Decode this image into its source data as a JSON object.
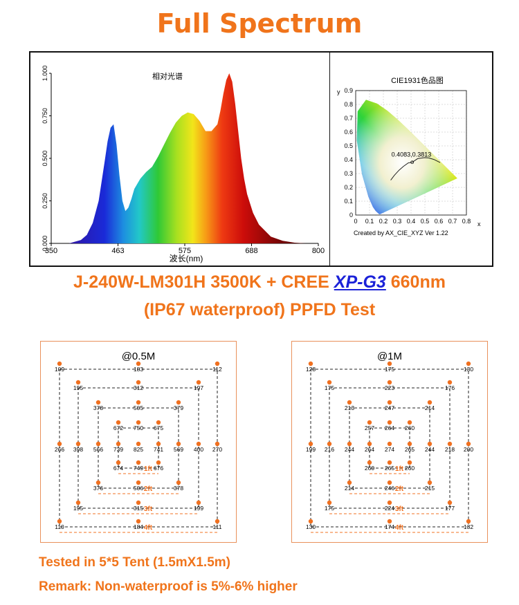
{
  "title": "Full Spectrum",
  "heading": {
    "line1_prefix": "J-240W-LM301H 3500K + CREE ",
    "line1_link": "XP-G3",
    "line1_suffix": " 660nm",
    "line2": "(IP67 waterproof) PPFD Test"
  },
  "colors": {
    "accent": "#f0741b",
    "link": "#1b22d8",
    "dashed_square": "#222222",
    "dot": "#f07020"
  },
  "chart_data": [
    {
      "type": "area",
      "title": "相对光谱",
      "xlabel": "波长(nm)",
      "ylabel": "",
      "xlim": [
        350,
        800
      ],
      "ylim": [
        0,
        1
      ],
      "x_ticks": [
        "350",
        "463",
        "575",
        "688",
        "800"
      ],
      "y_ticks": [
        "0.000",
        "0.250",
        "0.500",
        "0.750",
        "1.000"
      ],
      "x": [
        380,
        400,
        410,
        420,
        430,
        440,
        445,
        450,
        455,
        460,
        465,
        470,
        475,
        480,
        485,
        490,
        500,
        510,
        520,
        530,
        540,
        550,
        560,
        570,
        580,
        590,
        600,
        610,
        620,
        630,
        635,
        640,
        645,
        650,
        655,
        660,
        665,
        670,
        675,
        680,
        690,
        700,
        720,
        740,
        760,
        780
      ],
      "y": [
        0.0,
        0.02,
        0.05,
        0.12,
        0.25,
        0.48,
        0.6,
        0.68,
        0.7,
        0.58,
        0.4,
        0.25,
        0.19,
        0.21,
        0.26,
        0.32,
        0.38,
        0.42,
        0.45,
        0.51,
        0.58,
        0.65,
        0.71,
        0.75,
        0.77,
        0.76,
        0.72,
        0.66,
        0.66,
        0.7,
        0.78,
        0.88,
        0.96,
        1.0,
        0.95,
        0.82,
        0.66,
        0.5,
        0.38,
        0.29,
        0.18,
        0.11,
        0.04,
        0.015,
        0.004,
        0.0
      ]
    },
    {
      "type": "scatter",
      "title": "CIE1931色品图",
      "xlabel": "x",
      "ylabel": "y",
      "xlim": [
        0,
        0.8
      ],
      "ylim": [
        0,
        0.9
      ],
      "x_ticks": [
        "0",
        "0.1",
        "0.2",
        "0.3",
        "0.4",
        "0.5",
        "0.6",
        "0.7",
        "0.8"
      ],
      "y_ticks": [
        "0",
        "0.1",
        "0.2",
        "0.3",
        "0.4",
        "0.5",
        "0.6",
        "0.7",
        "0.8",
        "0.9"
      ],
      "point": {
        "x": 0.4083,
        "y": 0.3813
      },
      "point_label": "0.4083,0.3813",
      "credit": "Created by AX_CIE_XYZ Ver 1.22"
    },
    {
      "type": "table",
      "title": "@0.5M",
      "ring_labels": [
        "1ft",
        "2ft",
        "3ft",
        "4ft"
      ],
      "rows": [
        [
          "109",
          "183",
          "112"
        ],
        [
          "195",
          "312",
          "197"
        ],
        [
          "378",
          "505",
          "379"
        ],
        [
          "672",
          "750",
          "675"
        ],
        [
          "266",
          "398",
          "566",
          "739",
          "825",
          "741",
          "569",
          "400",
          "270"
        ],
        [
          "674",
          "749",
          "676"
        ],
        [
          "376",
          "506",
          "378"
        ],
        [
          "195",
          "315",
          "199"
        ],
        [
          "110",
          "184",
          "111"
        ]
      ]
    },
    {
      "type": "table",
      "title": "@1M",
      "ring_labels": [
        "1ft",
        "2ft",
        "3ft",
        "4ft"
      ],
      "rows": [
        [
          "128",
          "175",
          "130"
        ],
        [
          "175",
          "223",
          "176"
        ],
        [
          "213",
          "247",
          "214"
        ],
        [
          "257",
          "264",
          "260"
        ],
        [
          "199",
          "216",
          "244",
          "264",
          "274",
          "265",
          "244",
          "218",
          "200"
        ],
        [
          "260",
          "265",
          "260"
        ],
        [
          "214",
          "246",
          "215"
        ],
        [
          "175",
          "224",
          "177"
        ],
        [
          "130",
          "174",
          "132"
        ]
      ]
    }
  ],
  "footer": {
    "line1": "Tested in 5*5 Tent (1.5mX1.5m)",
    "line2": "Remark: Non-waterproof is 5%-6% higher"
  }
}
